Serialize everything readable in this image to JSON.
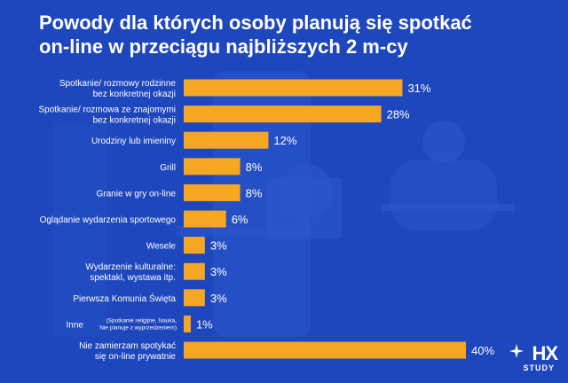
{
  "title_lines": [
    "Powody dla których osoby planują się spotkać",
    "on-line w przeciągu najbliższych 2 m-cy"
  ],
  "logo": {
    "main": "HX",
    "sub": "STUDY"
  },
  "colors": {
    "background": "#1f47bd",
    "bar": "#f5a623",
    "text": "#ffffff"
  },
  "chart_data": {
    "type": "bar",
    "orientation": "horizontal",
    "title": "Powody dla których osoby planują się spotkać on-line w przeciągu najbliższych 2 m-cy",
    "unit": "%",
    "categories": [
      {
        "lines": [
          "Spotkanie/ rozmowy rodzinne",
          "bez konkretnej okazji"
        ]
      },
      {
        "lines": [
          "Spotkanie/ rozmowa ze znajomymi",
          "bez konkretnej okazji"
        ]
      },
      {
        "lines": [
          "Urodziny lub imieniny"
        ]
      },
      {
        "lines": [
          "Grill"
        ]
      },
      {
        "lines": [
          "Granie w gry on-line"
        ]
      },
      {
        "lines": [
          "Oglądanie wydarzenia sportowego"
        ]
      },
      {
        "lines": [
          "Wesele"
        ]
      },
      {
        "lines": [
          "Wydarzenie kulturalne:",
          "spektakl, wystawa itp."
        ]
      },
      {
        "lines": [
          "Pierwsza Komunia Święta"
        ]
      },
      {
        "lines": [
          "Inne"
        ],
        "note": [
          "(Spotkanie religijne, Nauka,",
          "Nie planuje z wyprzedzeniem)"
        ]
      },
      {
        "lines": [
          "Nie zamierzam spotykać",
          "się on-line prywatnie"
        ]
      }
    ],
    "values": [
      31,
      28,
      12,
      8,
      8,
      6,
      3,
      3,
      3,
      1,
      40
    ],
    "value_labels": [
      "31%",
      "28%",
      "12%",
      "8%",
      "8%",
      "6%",
      "3%",
      "3%",
      "3%",
      "1%",
      "40%"
    ],
    "xlim": [
      0,
      40
    ],
    "grid": false,
    "legend": "none"
  }
}
